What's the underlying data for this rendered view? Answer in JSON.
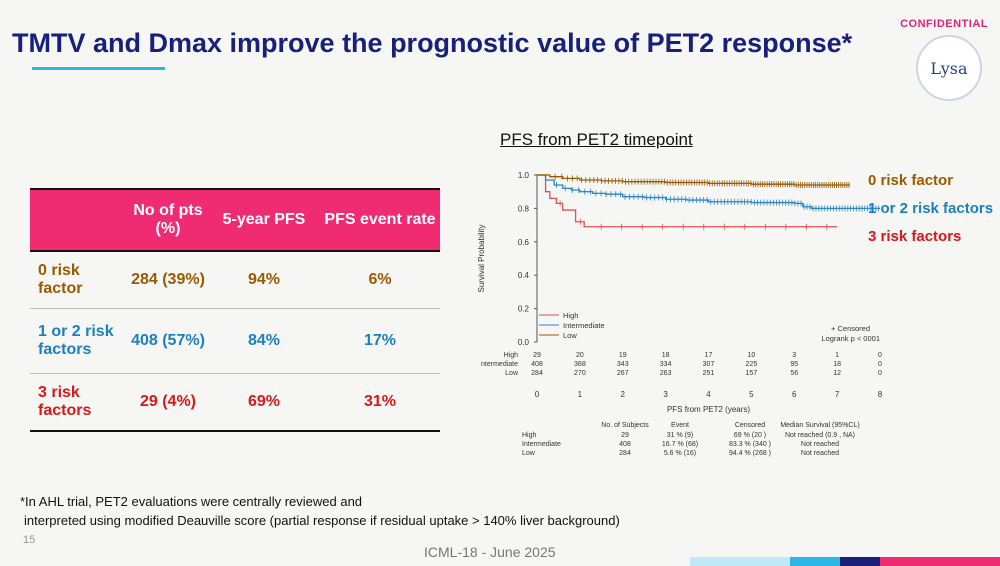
{
  "header": {
    "title": "TMTV and Dmax improve the prognostic value of PET2 response*",
    "confidential": "CONFIDENTIAL",
    "logo_text": "Lysa"
  },
  "table": {
    "headers": [
      "",
      "No of pts (%)",
      "5-year PFS",
      "PFS event rate"
    ],
    "rows": [
      {
        "group": "0 risk factor",
        "pts": "284 (39%)",
        "pfs5": "94%",
        "event_rate": "6%",
        "color": "#9a5b00"
      },
      {
        "group": "1 or 2 risk factors",
        "pts": "408 (57%)",
        "pfs5": "84%",
        "event_rate": "17%",
        "color": "#1b7fc4"
      },
      {
        "group": "3 risk factors",
        "pts": "29 (4%)",
        "pfs5": "69%",
        "event_rate": "31%",
        "color": "#d61919"
      }
    ]
  },
  "chart_data": {
    "type": "line",
    "title": "PFS from PET2 timepoint",
    "xlabel": "PFS from PET2 (years)",
    "ylabel": "Survival Probability",
    "xlim": [
      0,
      8
    ],
    "ylim": [
      0,
      1
    ],
    "x_ticks": [
      "0",
      "1",
      "2",
      "3",
      "4",
      "5",
      "6",
      "7",
      "8"
    ],
    "y_ticks": [
      "0.0",
      "0.2",
      "0.4",
      "0.6",
      "0.8",
      "1.0"
    ],
    "legend": [
      "High",
      "Intermediate",
      "Low"
    ],
    "censored_label": "+ Censored",
    "logrank": "Logrank p < 0001",
    "series": [
      {
        "name": "High",
        "color": "#e05050",
        "x": [
          0,
          0.2,
          0.3,
          0.45,
          0.6,
          0.9,
          1.1,
          7.0
        ],
        "y": [
          1.0,
          0.9,
          0.86,
          0.83,
          0.79,
          0.72,
          0.69,
          0.69
        ]
      },
      {
        "name": "Intermediate",
        "color": "#2a86c8",
        "x": [
          0,
          0.2,
          0.4,
          0.6,
          0.8,
          1.0,
          1.3,
          1.6,
          2.0,
          2.5,
          3.0,
          3.5,
          4.0,
          5.0,
          6.0,
          6.2,
          6.4,
          8.0
        ],
        "y": [
          1.0,
          0.97,
          0.94,
          0.92,
          0.91,
          0.9,
          0.89,
          0.885,
          0.87,
          0.865,
          0.855,
          0.85,
          0.84,
          0.835,
          0.83,
          0.81,
          0.8,
          0.8
        ]
      },
      {
        "name": "Low",
        "color": "#9a5b00",
        "x": [
          0,
          0.3,
          0.6,
          1.0,
          1.5,
          2.0,
          3.0,
          4.0,
          5.0,
          6.0,
          7.0,
          7.3
        ],
        "y": [
          1.0,
          0.99,
          0.98,
          0.97,
          0.965,
          0.96,
          0.955,
          0.95,
          0.945,
          0.94,
          0.94,
          0.94
        ]
      }
    ],
    "curve_labels": [
      {
        "text": "0 risk factor",
        "color": "#9a5b00"
      },
      {
        "text": "1 or 2 risk factors",
        "color": "#1b7fc4"
      },
      {
        "text": "3 risk factors",
        "color": "#d61919"
      }
    ],
    "at_risk": {
      "groups": [
        "High",
        "ntermediate",
        "Low"
      ],
      "rows": [
        [
          "29",
          "20",
          "19",
          "18",
          "17",
          "10",
          "3",
          "1",
          "0"
        ],
        [
          "408",
          "368",
          "343",
          "334",
          "307",
          "225",
          "95",
          "18",
          "0"
        ],
        [
          "284",
          "270",
          "267",
          "263",
          "251",
          "157",
          "56",
          "12",
          "0"
        ]
      ]
    },
    "summary": {
      "headers": [
        "No. of Subjects",
        "Event",
        "Censored",
        "Median Survival (95%CL)"
      ],
      "rows": [
        {
          "group": "High",
          "n": "29",
          "event": "31 % (9)",
          "censored": "69 % (20 )",
          "median": "Not reached (0.9 , NA)"
        },
        {
          "group": "Intermediate",
          "n": "408",
          "event": "16.7 % (68)",
          "censored": "83.3 % (340 )",
          "median": "Not reached"
        },
        {
          "group": "Low",
          "n": "284",
          "event": "5.6 % (16)",
          "censored": "94.4 % (268 )",
          "median": "Not reached"
        }
      ]
    }
  },
  "footnote": [
    "*In AHL trial, PET2 evaluations were centrally reviewed and",
    "interpreted using modified Deauville score (partial response if residual uptake > 140% liver background)"
  ],
  "page_number": "15",
  "footer": "ICML-18 - June 2025",
  "colors": {
    "navy": "#18207a",
    "magenta": "#ef2b72",
    "cyan": "#2bb6e6"
  }
}
